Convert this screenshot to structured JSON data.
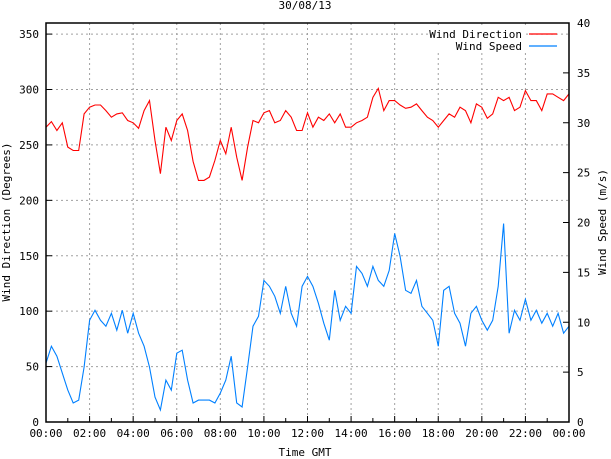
{
  "chart_data": {
    "type": "line",
    "title": "30/08/13",
    "xlabel": "Time GMT",
    "ylabel_left": "Wind Direction (Degrees)",
    "ylabel_right": "Wind Speed (m/s)",
    "xlim_hours": [
      0,
      24
    ],
    "ylim_left": [
      0,
      360
    ],
    "ylim_right": [
      0,
      40
    ],
    "grid": true,
    "legend_position": "top-right",
    "x_tick_labels": [
      "00:00",
      "02:00",
      "04:00",
      "06:00",
      "08:00",
      "10:00",
      "12:00",
      "14:00",
      "16:00",
      "18:00",
      "20:00",
      "22:00",
      "00:00"
    ],
    "y_left_tick_labels": [
      "0",
      "50",
      "100",
      "150",
      "200",
      "250",
      "300",
      "350"
    ],
    "y_right_tick_labels": [
      "0",
      "5",
      "10",
      "15",
      "20",
      "25",
      "30",
      "35",
      "40"
    ],
    "x_start_hours": 0,
    "x_step_hours": 0.25,
    "series": [
      {
        "name": "Wind Direction",
        "axis": "left",
        "color": "#ff0000",
        "values": [
          266,
          271,
          263,
          270,
          248,
          245,
          245,
          278,
          284,
          286,
          286,
          281,
          275,
          278,
          279,
          272,
          270,
          265,
          281,
          290,
          254,
          224,
          266,
          254,
          272,
          278,
          263,
          235,
          218,
          218,
          221,
          236,
          254,
          242,
          266,
          239,
          218,
          248,
          272,
          270,
          279,
          281,
          270,
          272,
          281,
          275,
          263,
          263,
          279,
          266,
          275,
          272,
          278,
          270,
          278,
          266,
          266,
          270,
          272,
          275,
          293,
          301,
          281,
          290,
          290,
          286,
          283,
          284,
          287,
          281,
          275,
          272,
          266,
          272,
          278,
          275,
          284,
          281,
          270,
          287,
          284,
          274,
          278,
          293,
          290,
          293,
          281,
          284,
          299,
          290,
          290,
          281,
          296,
          296,
          293,
          290,
          296
        ]
      },
      {
        "name": "Wind Speed",
        "axis": "right",
        "color": "#0080ff",
        "values": [
          5.9,
          7.6,
          6.6,
          4.9,
          3.2,
          1.9,
          2.2,
          5.5,
          10.2,
          11.2,
          10.2,
          9.6,
          10.9,
          9.2,
          11.2,
          8.9,
          10.9,
          8.9,
          7.6,
          5.5,
          2.5,
          1.2,
          4.2,
          3.2,
          6.9,
          7.2,
          4.2,
          1.9,
          2.2,
          2.2,
          2.2,
          1.9,
          2.9,
          4.2,
          6.6,
          1.9,
          1.5,
          5.5,
          9.6,
          10.6,
          14.2,
          13.6,
          12.6,
          10.9,
          13.6,
          10.9,
          9.6,
          13.6,
          14.6,
          13.6,
          11.9,
          9.9,
          8.2,
          13.2,
          10.2,
          11.6,
          10.9,
          15.6,
          14.9,
          13.6,
          15.6,
          14.2,
          13.6,
          15.2,
          18.9,
          16.6,
          13.2,
          12.9,
          14.2,
          11.6,
          10.9,
          10.2,
          7.6,
          13.2,
          13.6,
          10.9,
          9.9,
          7.6,
          10.9,
          11.6,
          10.2,
          9.2,
          10.2,
          13.6,
          19.9,
          8.9,
          11.2,
          10.2,
          12.3,
          10.2,
          11.2,
          9.9,
          10.9,
          9.6,
          10.9,
          8.9,
          9.6
        ]
      }
    ]
  }
}
